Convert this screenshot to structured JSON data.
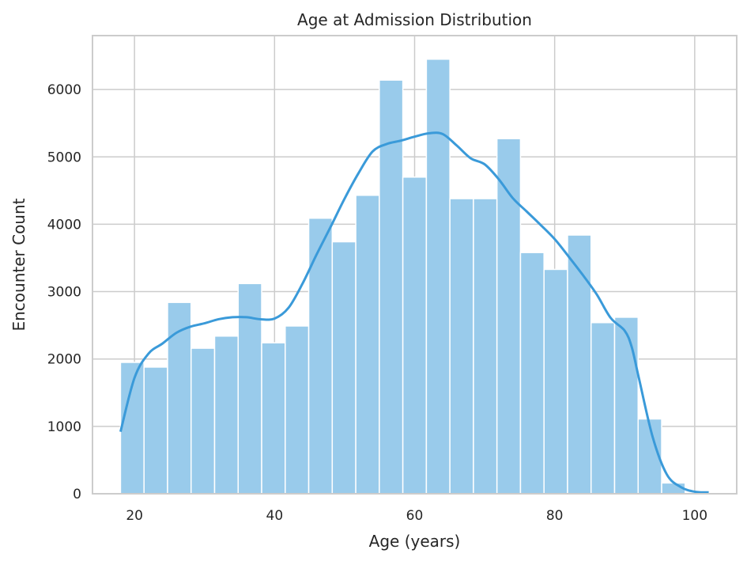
{
  "chart_data": {
    "type": "bar",
    "title": "Age at Admission Distribution",
    "xlabel": "Age (years)",
    "ylabel": "Encounter Count",
    "xlim": [
      14,
      106
    ],
    "ylim": [
      0,
      6800
    ],
    "xticks": [
      20,
      40,
      60,
      80,
      100
    ],
    "yticks": [
      0,
      1000,
      2000,
      3000,
      4000,
      5000,
      6000
    ],
    "grid": true,
    "colors": {
      "bar": "#99cbeb",
      "kde": "#3a9ad9",
      "grid": "#cccccc",
      "frame": "#cccccc"
    },
    "bins": {
      "edges": [
        18,
        21.36,
        24.72,
        28.08,
        31.44,
        34.8,
        38.16,
        41.52,
        44.88,
        48.24,
        51.6,
        54.96,
        58.32,
        61.68,
        65.04,
        68.4,
        71.76,
        75.12,
        78.48,
        81.84,
        85.2,
        88.56,
        91.92,
        95.28,
        98.64,
        102
      ],
      "values": [
        1950,
        1880,
        2840,
        2160,
        2340,
        3120,
        2240,
        2490,
        4090,
        3740,
        4430,
        6140,
        4700,
        6450,
        4380,
        4380,
        5270,
        3580,
        3330,
        3840,
        2540,
        2620,
        1110,
        160,
        0
      ]
    },
    "kde": {
      "x": [
        18,
        20,
        22,
        24,
        26,
        28,
        30,
        32,
        34,
        36,
        38,
        40,
        42,
        44,
        46,
        48,
        50,
        52,
        54,
        56,
        58,
        60,
        62,
        64,
        66,
        68,
        70,
        72,
        74,
        76,
        78,
        80,
        82,
        84,
        86,
        88,
        90,
        91,
        92,
        94,
        96,
        98,
        100,
        102
      ],
      "y": [
        920,
        1720,
        2080,
        2230,
        2390,
        2480,
        2530,
        2590,
        2620,
        2620,
        2590,
        2600,
        2760,
        3120,
        3550,
        3960,
        4380,
        4760,
        5080,
        5190,
        5240,
        5300,
        5350,
        5340,
        5170,
        4980,
        4890,
        4670,
        4390,
        4190,
        3990,
        3780,
        3520,
        3250,
        2960,
        2610,
        2420,
        2180,
        1730,
        840,
        290,
        100,
        30,
        20
      ]
    }
  }
}
